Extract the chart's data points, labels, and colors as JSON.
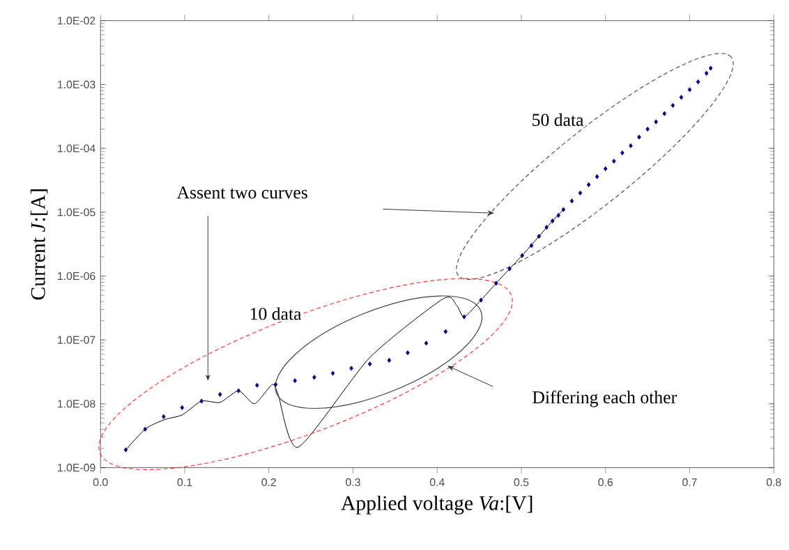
{
  "chart_data": {
    "type": "line",
    "xlabel": "Applied voltage *Va*:[V]",
    "ylabel": "Current *J*:[A]",
    "xlim": [
      0,
      0.8
    ],
    "ylim": [
      1e-09,
      0.01
    ],
    "log": "y",
    "grid": false,
    "xticks": [
      {
        "value": 0,
        "label": "0.0"
      },
      {
        "value": 0.1,
        "label": "0.1"
      },
      {
        "value": 0.2,
        "label": "0.2"
      },
      {
        "value": 0.3,
        "label": "0.3"
      },
      {
        "value": 0.4,
        "label": "0.4"
      },
      {
        "value": 0.5,
        "label": "0.5"
      },
      {
        "value": 0.6,
        "label": "0.6"
      },
      {
        "value": 0.7,
        "label": "0.7"
      },
      {
        "value": 0.8,
        "label": "0.8"
      }
    ],
    "yticks": [
      {
        "value": 1e-09,
        "label": "1.0E-09"
      },
      {
        "value": 1e-08,
        "label": "1.0E-08"
      },
      {
        "value": 1e-07,
        "label": "1.0E-07"
      },
      {
        "value": 1e-06,
        "label": "1.0E-06"
      },
      {
        "value": 1e-05,
        "label": "1.0E-05"
      },
      {
        "value": 0.0001,
        "label": "1.0E-04"
      },
      {
        "value": 0.001,
        "label": "1.0E-03"
      },
      {
        "value": 0.01,
        "label": "1.0E-02"
      }
    ],
    "series": [
      {
        "type": "scatter",
        "marker": "diamond",
        "color": "#000080",
        "x": [
          0.03,
          0.053,
          0.075,
          0.097,
          0.12,
          0.142,
          0.164,
          0.186,
          0.208,
          0.231,
          0.254,
          0.276,
          0.298,
          0.32,
          0.343,
          0.365,
          0.387,
          0.41,
          0.432,
          0.452,
          0.47,
          0.486,
          0.501,
          0.512,
          0.521,
          0.53,
          0.537,
          0.544,
          0.55,
          0.56,
          0.57,
          0.58,
          0.59,
          0.6,
          0.61,
          0.62,
          0.63,
          0.64,
          0.65,
          0.66,
          0.67,
          0.68,
          0.69,
          0.7,
          0.71,
          0.72,
          0.725
        ],
        "values": [
          1.9e-09,
          4e-09,
          6.3e-09,
          8.7e-09,
          1.1e-08,
          1.4e-08,
          1.6e-08,
          1.95e-08,
          2e-08,
          2.3e-08,
          2.6e-08,
          3e-08,
          3.6e-08,
          4.2e-08,
          4.8e-08,
          6.3e-08,
          8.9e-08,
          1.35e-07,
          2.3e-07,
          4.2e-07,
          7.7e-07,
          1.3e-06,
          2.1e-06,
          3e-06,
          4.2e-06,
          5.8e-06,
          7.3e-06,
          8.9e-06,
          1.1e-05,
          1.5e-05,
          2e-05,
          2.7e-05,
          3.6e-05,
          4.8e-05,
          6.3e-05,
          8.5e-05,
          0.00011,
          0.00015,
          0.0002,
          0.00026,
          0.00035,
          0.00047,
          0.00063,
          0.00083,
          0.0011,
          0.0015,
          0.0018
        ]
      },
      {
        "type": "line",
        "marker": "none",
        "line_style": "solid",
        "color": "#000000",
        "x": [
          0.03,
          0.053,
          0.075,
          0.097,
          0.12,
          0.142,
          0.164,
          0.183,
          0.204,
          0.211,
          0.235,
          0.32,
          0.407,
          0.423,
          0.432,
          0.452,
          0.47,
          0.486,
          0.501,
          0.521,
          0.537,
          0.55
        ],
        "values": [
          1.9e-09,
          4e-09,
          5.6e-09,
          6.7e-09,
          1.1e-08,
          1.05e-08,
          1.6e-08,
          1e-08,
          2e-08,
          1.4e-08,
          2.1e-09,
          5.3e-08,
          4.4e-07,
          3.5e-07,
          2.3e-07,
          4.2e-07,
          7.7e-07,
          1.3e-06,
          2.1e-06,
          4.2e-06,
          7.3e-06,
          1.1e-05
        ]
      }
    ],
    "annotations": [
      "Assent two curves",
      "10 data",
      "50 data",
      "Differing each other"
    ]
  }
}
